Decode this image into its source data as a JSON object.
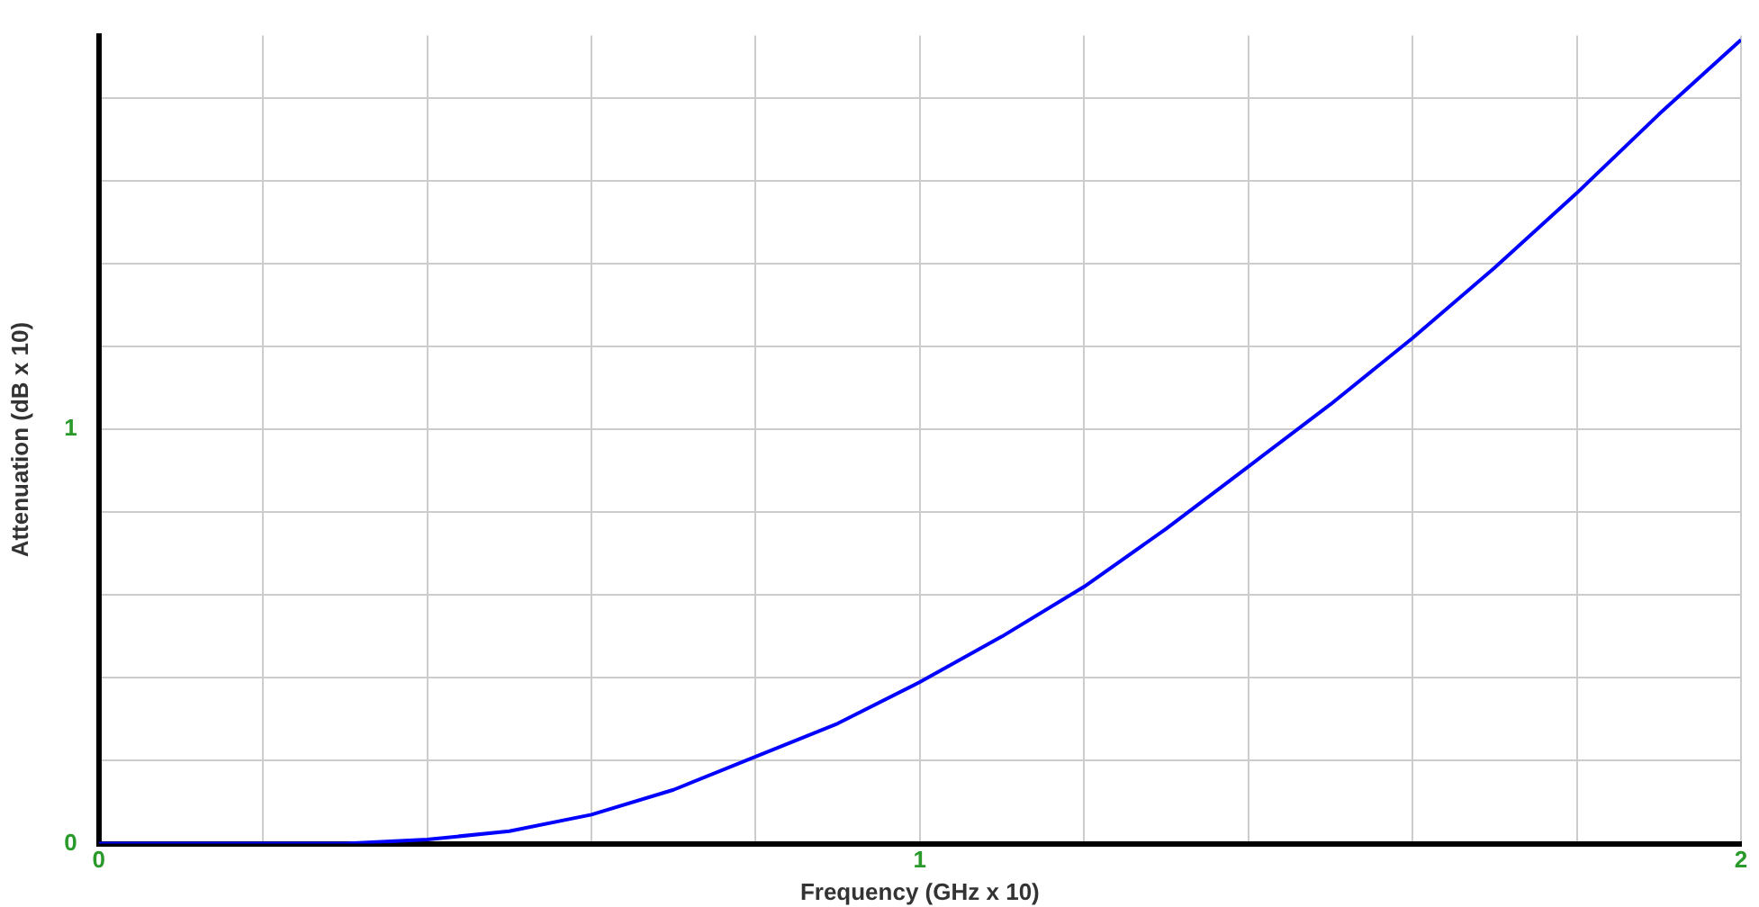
{
  "chart_data": {
    "type": "line",
    "xlabel": "Frequency (GHz x 10)",
    "ylabel": "Attenuation (dB x 10)",
    "x": [
      0,
      0.2,
      0.3,
      0.4,
      0.5,
      0.6,
      0.7,
      0.8,
      0.9,
      1.0,
      1.1,
      1.2,
      1.3,
      1.4,
      1.5,
      1.6,
      1.7,
      1.8,
      1.9,
      2.0
    ],
    "series": [
      {
        "color": "#0000ff",
        "values": [
          0,
          0,
          0,
          0.01,
          0.03,
          0.07,
          0.13,
          0.21,
          0.29,
          0.39,
          0.5,
          0.62,
          0.76,
          0.91,
          1.06,
          1.22,
          1.39,
          1.57,
          1.76,
          1.94
        ]
      }
    ],
    "xlim": [
      0,
      2
    ],
    "ylim": [
      0,
      1.95
    ],
    "xticks": [
      0,
      {
        "value": 0.2,
        "label": null
      },
      {
        "value": 0.4,
        "label": null
      },
      {
        "value": 0.6,
        "label": null
      },
      {
        "value": 0.8,
        "label": null
      },
      1,
      {
        "value": 1.2,
        "label": null
      },
      {
        "value": 1.4,
        "label": null
      },
      {
        "value": 1.6,
        "label": null
      },
      {
        "value": 1.8,
        "label": null
      },
      2
    ],
    "yticks": [
      0,
      {
        "value": 0.2,
        "label": null
      },
      {
        "value": 0.4,
        "label": null
      },
      {
        "value": 0.6,
        "label": null
      },
      {
        "value": 0.8,
        "label": null
      },
      1,
      {
        "value": 1.2,
        "label": null
      },
      {
        "value": 1.4,
        "label": null
      },
      {
        "value": 1.6,
        "label": null
      },
      {
        "value": 1.8,
        "label": null
      }
    ],
    "grid": true,
    "marker": "none",
    "line_style": "solid",
    "legend": false
  }
}
